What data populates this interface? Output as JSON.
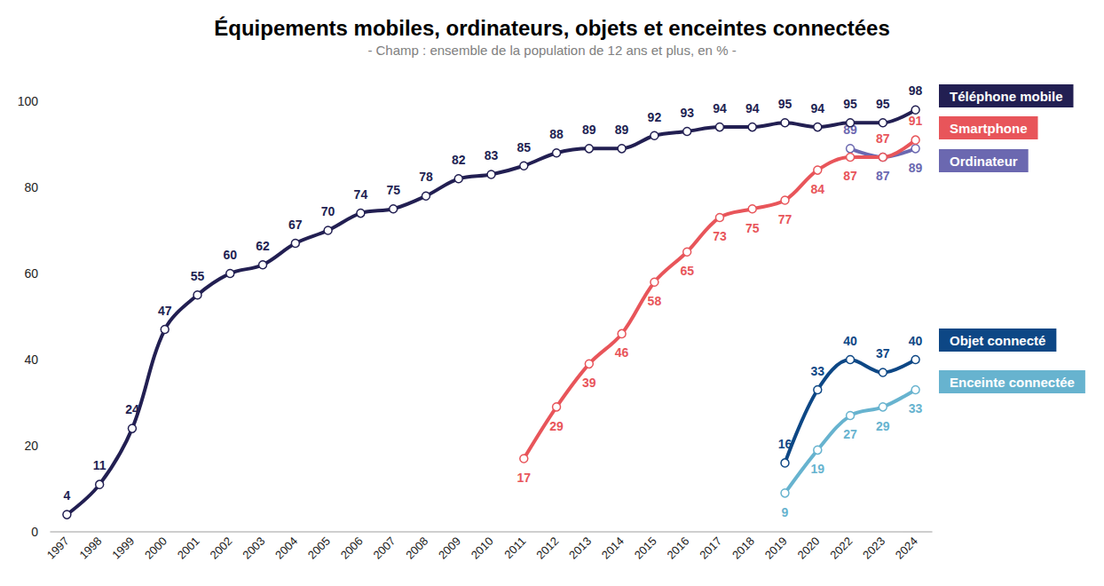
{
  "chart_data": {
    "type": "line",
    "title": "Équipements mobiles, ordinateurs, objets et enceintes connectées",
    "subtitle": "- Champ : ensemble de la population de 12 ans et plus, en % -",
    "categories": [
      "1997",
      "1998",
      "1999",
      "2000",
      "2001",
      "2002",
      "2003",
      "2004",
      "2005",
      "2006",
      "2007",
      "2008",
      "2009",
      "2010",
      "2011",
      "2012",
      "2013",
      "2014",
      "2015",
      "2016",
      "2017",
      "2018",
      "2019",
      "2020",
      "2022",
      "2023",
      "2024"
    ],
    "series": [
      {
        "name": "Téléphone mobile",
        "color": "#221f52",
        "values": [
          4,
          11,
          24,
          47,
          55,
          60,
          62,
          67,
          70,
          74,
          75,
          78,
          82,
          83,
          85,
          88,
          89,
          89,
          92,
          93,
          94,
          94,
          95,
          94,
          95,
          95,
          98
        ]
      },
      {
        "name": "Smartphone",
        "color": "#e8555a",
        "values": [
          null,
          null,
          null,
          null,
          null,
          null,
          null,
          null,
          null,
          null,
          null,
          null,
          null,
          null,
          17,
          29,
          39,
          46,
          58,
          65,
          73,
          75,
          77,
          84,
          87,
          87,
          91
        ]
      },
      {
        "name": "Ordinateur",
        "color": "#6b68b0",
        "values": [
          null,
          null,
          null,
          null,
          null,
          null,
          null,
          null,
          null,
          null,
          null,
          null,
          null,
          null,
          null,
          null,
          null,
          null,
          null,
          null,
          null,
          null,
          null,
          null,
          89,
          87,
          89
        ]
      },
      {
        "name": "Objet connecté",
        "color": "#0d4785",
        "values": [
          null,
          null,
          null,
          null,
          null,
          null,
          null,
          null,
          null,
          null,
          null,
          null,
          null,
          null,
          null,
          null,
          null,
          null,
          null,
          null,
          null,
          null,
          16,
          33,
          40,
          37,
          40
        ]
      },
      {
        "name": "Enceinte connectée",
        "color": "#67b3cf",
        "values": [
          null,
          null,
          null,
          null,
          null,
          null,
          null,
          null,
          null,
          null,
          null,
          null,
          null,
          null,
          null,
          null,
          null,
          null,
          null,
          null,
          null,
          null,
          9,
          19,
          27,
          29,
          33
        ]
      }
    ],
    "ylim": [
      0,
      100
    ],
    "yticks": [
      0,
      20,
      40,
      60,
      80,
      100
    ],
    "grid": false,
    "data_labels": true,
    "marker": "circle",
    "line_style": "solid"
  }
}
